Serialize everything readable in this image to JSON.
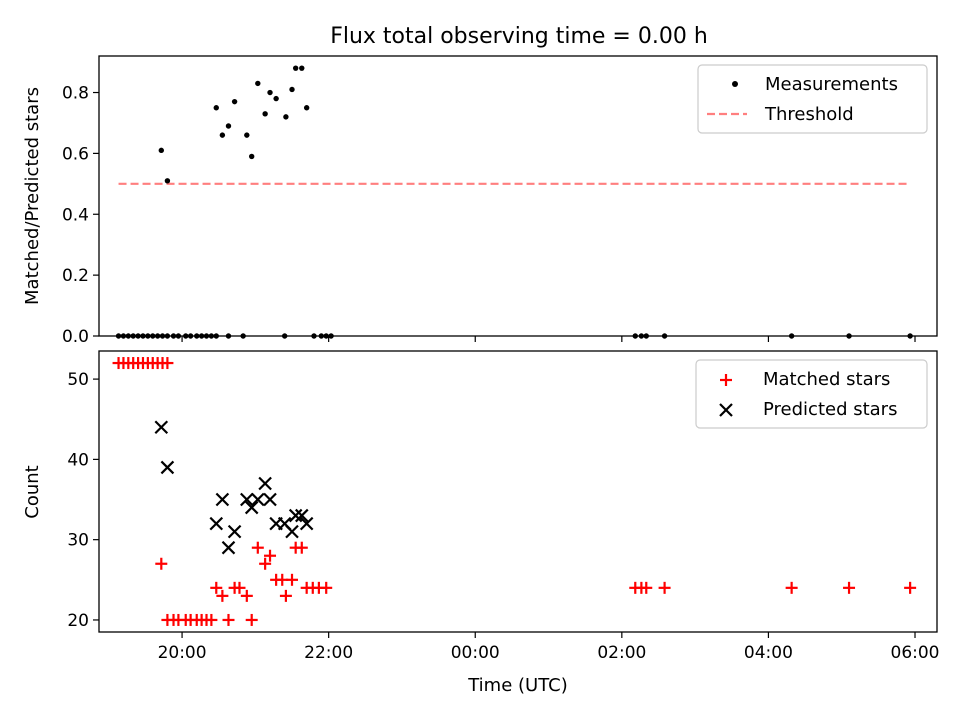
{
  "chart_data": [
    {
      "type": "scatter",
      "title": "Flux total observing time = 0.00 h",
      "xlabel": "",
      "ylabel": "Matched/Predicted stars",
      "xlim": [
        "18:52",
        "06:18"
      ],
      "ylim": [
        0,
        0.92
      ],
      "yticks": [
        "0.0",
        "0.2",
        "0.4",
        "0.6",
        "0.8"
      ],
      "legend_position": "top-right",
      "series": [
        {
          "name": "Measurements",
          "marker": "dot",
          "color": "#000000",
          "points": [
            [
              "19:08",
              0
            ],
            [
              "19:12",
              0
            ],
            [
              "19:16",
              0
            ],
            [
              "19:20",
              0
            ],
            [
              "19:24",
              0
            ],
            [
              "19:28",
              0
            ],
            [
              "19:32",
              0
            ],
            [
              "19:36",
              0
            ],
            [
              "19:40",
              0
            ],
            [
              "19:44",
              0
            ],
            [
              "19:48",
              0
            ],
            [
              "19:43",
              0.61
            ],
            [
              "19:48",
              0.51
            ],
            [
              "19:53",
              0
            ],
            [
              "19:57",
              0
            ],
            [
              "20:03",
              0
            ],
            [
              "20:07",
              0
            ],
            [
              "20:12",
              0
            ],
            [
              "20:16",
              0
            ],
            [
              "20:20",
              0
            ],
            [
              "20:24",
              0
            ],
            [
              "20:28",
              0
            ],
            [
              "20:38",
              0
            ],
            [
              "20:50",
              0
            ],
            [
              "20:28",
              0.75
            ],
            [
              "20:33",
              0.66
            ],
            [
              "20:38",
              0.69
            ],
            [
              "20:43",
              0.77
            ],
            [
              "20:53",
              0.66
            ],
            [
              "20:57",
              0.59
            ],
            [
              "21:02",
              0.83
            ],
            [
              "21:08",
              0.73
            ],
            [
              "21:12",
              0.8
            ],
            [
              "21:17",
              0.78
            ],
            [
              "21:25",
              0.72
            ],
            [
              "21:30",
              0.81
            ],
            [
              "21:33",
              0.88
            ],
            [
              "21:38",
              0.88
            ],
            [
              "21:42",
              0.75
            ],
            [
              "21:24",
              0
            ],
            [
              "21:48",
              0
            ],
            [
              "21:54",
              0
            ],
            [
              "21:58",
              0
            ],
            [
              "22:02",
              0
            ],
            [
              "02:11",
              0
            ],
            [
              "02:16",
              0
            ],
            [
              "02:20",
              0
            ],
            [
              "02:35",
              0
            ],
            [
              "04:19",
              0
            ],
            [
              "05:06",
              0
            ],
            [
              "05:56",
              0
            ]
          ]
        },
        {
          "name": "Threshold",
          "style": "dashed",
          "color": "#ff7f7f",
          "points": [
            [
              "19:08",
              0.5
            ],
            [
              "05:56",
              0.5
            ]
          ]
        }
      ]
    },
    {
      "type": "scatter",
      "title": "",
      "xlabel": "Time (UTC)",
      "ylabel": "Count",
      "xlim": [
        "18:52",
        "06:18"
      ],
      "ylim": [
        18.5,
        53.5
      ],
      "yticks": [
        "20",
        "30",
        "40",
        "50"
      ],
      "xticks": [
        "20:00",
        "22:00",
        "00:00",
        "02:00",
        "04:00",
        "06:00"
      ],
      "legend_position": "top-right",
      "series": [
        {
          "name": "Matched stars",
          "marker": "plus",
          "color": "#ff0000",
          "points": [
            [
              "19:08",
              52
            ],
            [
              "19:12",
              52
            ],
            [
              "19:16",
              52
            ],
            [
              "19:20",
              52
            ],
            [
              "19:24",
              52
            ],
            [
              "19:28",
              52
            ],
            [
              "19:32",
              52
            ],
            [
              "19:36",
              52
            ],
            [
              "19:40",
              52
            ],
            [
              "19:44",
              52
            ],
            [
              "19:48",
              52
            ],
            [
              "19:43",
              27
            ],
            [
              "19:48",
              20
            ],
            [
              "19:53",
              20
            ],
            [
              "19:57",
              20
            ],
            [
              "20:03",
              20
            ],
            [
              "20:07",
              20
            ],
            [
              "20:12",
              20
            ],
            [
              "20:16",
              20
            ],
            [
              "20:20",
              20
            ],
            [
              "20:24",
              20
            ],
            [
              "20:38",
              20
            ],
            [
              "20:57",
              20
            ],
            [
              "20:28",
              24
            ],
            [
              "20:33",
              23
            ],
            [
              "20:43",
              24
            ],
            [
              "20:47",
              24
            ],
            [
              "20:53",
              23
            ],
            [
              "21:02",
              29
            ],
            [
              "21:08",
              27
            ],
            [
              "21:12",
              28
            ],
            [
              "21:17",
              25
            ],
            [
              "21:22",
              25
            ],
            [
              "21:25",
              23
            ],
            [
              "21:30",
              25
            ],
            [
              "21:33",
              29
            ],
            [
              "21:38",
              29
            ],
            [
              "21:42",
              24
            ],
            [
              "21:47",
              24
            ],
            [
              "21:52",
              24
            ],
            [
              "21:58",
              24
            ],
            [
              "02:11",
              24
            ],
            [
              "02:16",
              24
            ],
            [
              "02:20",
              24
            ],
            [
              "02:35",
              24
            ],
            [
              "04:19",
              24
            ],
            [
              "05:06",
              24
            ],
            [
              "05:56",
              24
            ]
          ]
        },
        {
          "name": "Predicted stars",
          "marker": "x",
          "color": "#000000",
          "points": [
            [
              "19:43",
              44
            ],
            [
              "19:48",
              39
            ],
            [
              "20:28",
              32
            ],
            [
              "20:33",
              35
            ],
            [
              "20:38",
              29
            ],
            [
              "20:43",
              31
            ],
            [
              "20:53",
              35
            ],
            [
              "20:57",
              34
            ],
            [
              "21:02",
              35
            ],
            [
              "21:08",
              37
            ],
            [
              "21:12",
              35
            ],
            [
              "21:17",
              32
            ],
            [
              "21:24",
              32
            ],
            [
              "21:30",
              31
            ],
            [
              "21:33",
              33
            ],
            [
              "21:38",
              33
            ],
            [
              "21:42",
              32
            ]
          ]
        }
      ]
    }
  ]
}
